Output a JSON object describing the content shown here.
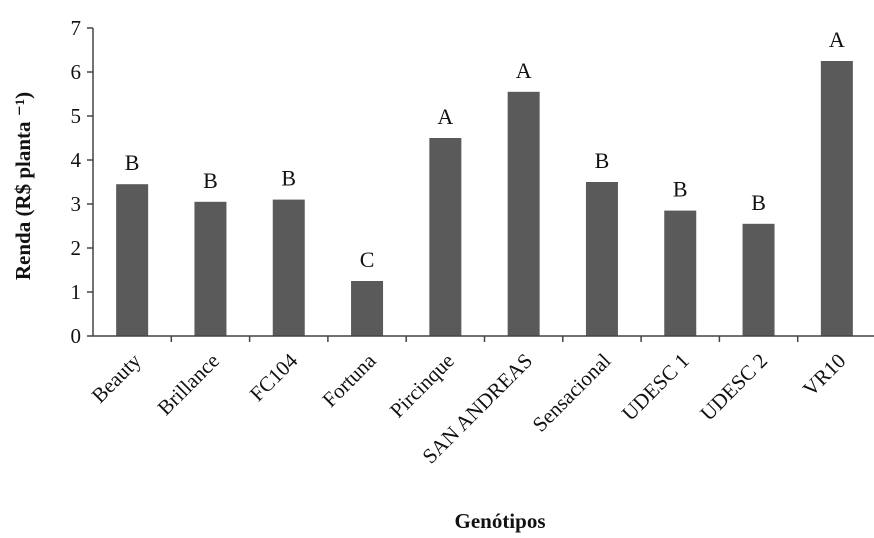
{
  "chart_data": {
    "type": "bar",
    "ylabel": "Renda (R$ planta ⁻¹)",
    "xlabel": "Genótipos",
    "ylim": [
      0,
      7
    ],
    "yticks": [
      0,
      1,
      2,
      3,
      4,
      5,
      6,
      7
    ],
    "grid": false,
    "legend": "none",
    "bar_color": "#5a5a5a",
    "categories": [
      "Beauty",
      "Brillance",
      "FC104",
      "Fortuna",
      "Pircinque",
      "SAN ANDREAS",
      "Sensacional",
      "UDESC 1",
      "UDESC 2",
      "VR10"
    ],
    "values": [
      3.45,
      3.05,
      3.1,
      1.25,
      4.5,
      5.55,
      3.5,
      2.85,
      2.55,
      6.25
    ],
    "labels": [
      "B",
      "B",
      "B",
      "C",
      "A",
      "A",
      "B",
      "B",
      "B",
      "A"
    ]
  }
}
